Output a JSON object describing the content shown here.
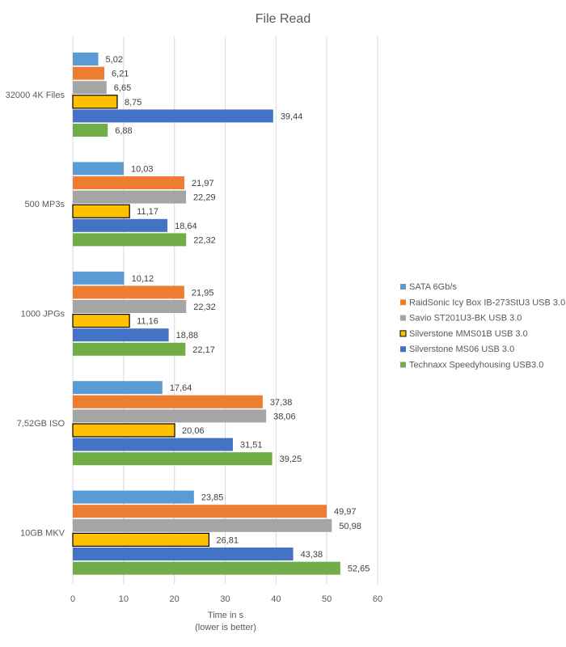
{
  "chart_data": {
    "type": "bar",
    "orientation": "horizontal",
    "title": "File Read",
    "xlabel": [
      "Time in s",
      "(lower is better)"
    ],
    "ylabel": "",
    "xlim": [
      0,
      60
    ],
    "xticks": [
      0,
      10,
      20,
      30,
      40,
      50,
      60
    ],
    "grid": true,
    "legend_position": "right",
    "categories": [
      "32000 4K Files",
      "500 MP3s",
      "1000 JPGs",
      "7,52GB ISO",
      "10GB MKV"
    ],
    "series": [
      {
        "name": "SATA 6Gb/s",
        "color": "#5b9bd5",
        "values": [
          5.02,
          10.03,
          10.12,
          17.64,
          23.85
        ]
      },
      {
        "name": "RaidSonic Icy Box IB-273StU3 USB 3.0",
        "color": "#ed7d31",
        "values": [
          6.21,
          21.97,
          21.95,
          37.38,
          49.97
        ]
      },
      {
        "name": "Savio ST201U3-BK USB 3.0",
        "color": "#a5a5a5",
        "values": [
          6.65,
          22.29,
          22.32,
          38.06,
          50.98
        ]
      },
      {
        "name": "Silverstone MMS01B USB 3.0",
        "color": "#ffc000",
        "outline": "#000000",
        "values": [
          8.75,
          11.17,
          11.16,
          20.06,
          26.81
        ]
      },
      {
        "name": "Silverstone MS06 USB 3.0",
        "color": "#4472c4",
        "values": [
          39.44,
          18.64,
          18.88,
          31.51,
          43.38
        ]
      },
      {
        "name": "Technaxx Speedyhousing USB3.0",
        "color": "#70ad47",
        "values": [
          6.88,
          22.32,
          22.17,
          39.25,
          52.65
        ]
      }
    ]
  }
}
